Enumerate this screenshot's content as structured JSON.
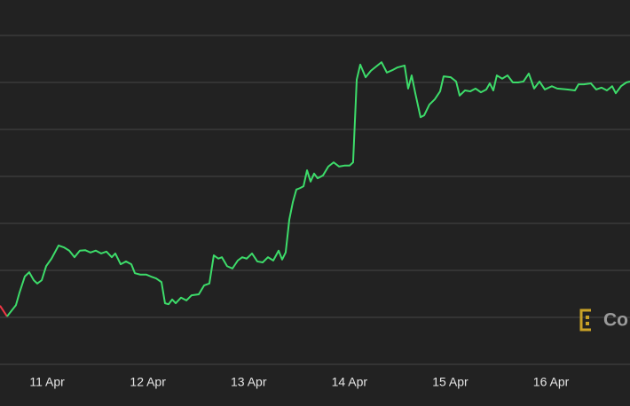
{
  "chart_data": {
    "type": "line",
    "watermark": "Co",
    "xlim": [
      10.533,
      16.783
    ],
    "xticks": [
      {
        "value": 11,
        "label": "11 Apr"
      },
      {
        "value": 12,
        "label": "12 Apr"
      },
      {
        "value": 13,
        "label": "13 Apr"
      },
      {
        "value": 14,
        "label": "14 Apr"
      },
      {
        "value": 15,
        "label": "15 Apr"
      },
      {
        "value": 16,
        "label": "16 Apr"
      }
    ],
    "ylim": [
      0,
      7
    ],
    "yticks": [
      0,
      1,
      2,
      3,
      4,
      5,
      6,
      7
    ],
    "grid": true,
    "series": [
      {
        "color": "#f23645",
        "x": [
          10.533,
          10.603
        ],
        "values": [
          1.25,
          1.02
        ]
      },
      {
        "color": "#3ddc6a",
        "x": [
          10.603,
          10.691,
          10.727,
          10.779,
          10.823,
          10.868,
          10.903,
          10.947,
          10.991,
          11.044,
          11.114,
          11.167,
          11.22,
          11.272,
          11.325,
          11.378,
          11.431,
          11.484,
          11.536,
          11.589,
          11.642,
          11.677,
          11.73,
          11.783,
          11.836,
          11.871,
          11.924,
          11.985,
          12.029,
          12.082,
          12.135,
          12.17,
          12.206,
          12.241,
          12.276,
          12.329,
          12.382,
          12.434,
          12.505,
          12.558,
          12.61,
          12.654,
          12.699,
          12.734,
          12.786,
          12.839,
          12.892,
          12.936,
          12.98,
          13.033,
          13.086,
          13.139,
          13.191,
          13.244,
          13.297,
          13.332,
          13.367,
          13.403,
          13.438,
          13.473,
          13.508,
          13.544,
          13.579,
          13.614,
          13.649,
          13.684,
          13.737,
          13.79,
          13.843,
          13.896,
          13.949,
          14.001,
          14.036,
          14.072,
          14.107,
          14.16,
          14.213,
          14.265,
          14.318,
          14.371,
          14.424,
          14.477,
          14.547,
          14.582,
          14.617,
          14.653,
          14.705,
          14.741,
          14.793,
          14.846,
          14.899,
          14.934,
          15.005,
          15.058,
          15.093,
          15.146,
          15.198,
          15.251,
          15.304,
          15.357,
          15.392,
          15.427,
          15.462,
          15.515,
          15.568,
          15.621,
          15.674,
          15.726,
          15.779,
          15.832,
          15.885,
          15.938,
          16.008,
          16.061,
          16.166,
          16.237,
          16.272,
          16.325,
          16.395,
          16.448,
          16.501,
          16.554,
          16.606,
          16.642,
          16.694,
          16.747,
          16.783
        ],
        "values": [
          1.02,
          1.26,
          1.53,
          1.87,
          1.96,
          1.79,
          1.72,
          1.79,
          2.09,
          2.25,
          2.53,
          2.49,
          2.42,
          2.28,
          2.42,
          2.43,
          2.38,
          2.42,
          2.36,
          2.4,
          2.28,
          2.36,
          2.13,
          2.19,
          2.13,
          1.94,
          1.91,
          1.91,
          1.87,
          1.83,
          1.75,
          1.3,
          1.28,
          1.38,
          1.3,
          1.42,
          1.36,
          1.47,
          1.49,
          1.68,
          1.72,
          2.32,
          2.25,
          2.28,
          2.09,
          2.04,
          2.21,
          2.28,
          2.25,
          2.36,
          2.19,
          2.17,
          2.28,
          2.21,
          2.42,
          2.23,
          2.38,
          3.08,
          3.45,
          3.72,
          3.75,
          3.79,
          4.13,
          3.89,
          4.06,
          3.96,
          4.02,
          4.21,
          4.3,
          4.21,
          4.23,
          4.23,
          4.3,
          6.06,
          6.38,
          6.11,
          6.25,
          6.34,
          6.43,
          6.21,
          6.26,
          6.32,
          6.36,
          5.87,
          6.15,
          5.77,
          5.26,
          5.3,
          5.53,
          5.64,
          5.81,
          6.13,
          6.11,
          6.02,
          5.72,
          5.83,
          5.81,
          5.87,
          5.79,
          5.85,
          5.98,
          5.83,
          6.15,
          6.08,
          6.15,
          6.0,
          6.0,
          6.02,
          6.19,
          5.87,
          6.02,
          5.85,
          5.92,
          5.87,
          5.85,
          5.83,
          5.96,
          5.96,
          5.98,
          5.85,
          5.89,
          5.83,
          5.92,
          5.77,
          5.92,
          6.0,
          6.02
        ]
      }
    ]
  }
}
